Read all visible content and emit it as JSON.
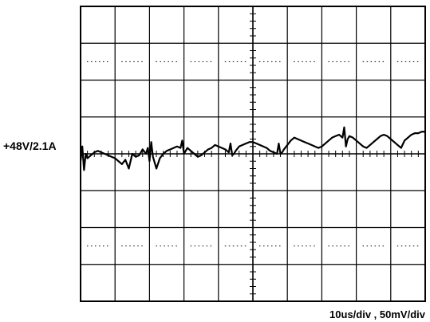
{
  "channel_label": "+48V/2.1A",
  "scale_label": "10us/div , 50mV/div",
  "colors": {
    "background": "#ffffff",
    "grid": "#000000",
    "trace": "#000000"
  },
  "chart_data": {
    "type": "line",
    "title": "",
    "xlabel": "",
    "ylabel": "",
    "grid": true,
    "divisions": {
      "x": 10,
      "y": 8
    },
    "minor_ticks_per_division": 5,
    "xlim": [
      0,
      100
    ],
    "ylim": [
      -200,
      200
    ],
    "x_unit": "us",
    "y_unit": "mV",
    "series": [
      {
        "name": "+48V/2.1A",
        "x": [
          0,
          0.5,
          1,
          1.5,
          2,
          3,
          4,
          5,
          6,
          7,
          8,
          9,
          10,
          11,
          12,
          13,
          14,
          15,
          16,
          17,
          18,
          19,
          19.5,
          20,
          20.5,
          21,
          22,
          23,
          24,
          25,
          26,
          27,
          28,
          29,
          29.5,
          30,
          30.5,
          31,
          32,
          33,
          34,
          35,
          36,
          37,
          38,
          39,
          40,
          41,
          42,
          43,
          43.5,
          44,
          44.5,
          45,
          46,
          47,
          48,
          49,
          50,
          51,
          52,
          53,
          54,
          55,
          56,
          57,
          57.5,
          58,
          58.5,
          59,
          60,
          61,
          62,
          63,
          64,
          65,
          66,
          67,
          68,
          69,
          70,
          71,
          72,
          73,
          74,
          75,
          76,
          76.5,
          77,
          77.5,
          78,
          79,
          80,
          81,
          82,
          83,
          84,
          85,
          86,
          87,
          88,
          89,
          90,
          91,
          92,
          93,
          94,
          95,
          96,
          97,
          98,
          99,
          100
        ],
        "values": [
          -10,
          10,
          -22,
          0,
          -6,
          -2,
          2,
          4,
          2,
          0,
          -2,
          -4,
          -6,
          -10,
          -14,
          -8,
          -20,
          0,
          -4,
          -2,
          6,
          0,
          8,
          -10,
          16,
          -4,
          -20,
          -6,
          0,
          4,
          6,
          8,
          10,
          8,
          18,
          0,
          4,
          8,
          4,
          0,
          -4,
          -2,
          2,
          6,
          8,
          12,
          10,
          8,
          6,
          2,
          14,
          -2,
          0,
          4,
          10,
          12,
          14,
          16,
          16,
          14,
          12,
          10,
          8,
          4,
          2,
          0,
          14,
          0,
          2,
          6,
          12,
          18,
          22,
          20,
          18,
          16,
          14,
          12,
          10,
          8,
          10,
          14,
          18,
          22,
          24,
          26,
          22,
          36,
          10,
          20,
          24,
          22,
          18,
          14,
          10,
          8,
          12,
          16,
          20,
          24,
          26,
          24,
          20,
          16,
          12,
          8,
          18,
          22,
          26,
          28,
          28,
          30,
          30
        ]
      }
    ]
  }
}
